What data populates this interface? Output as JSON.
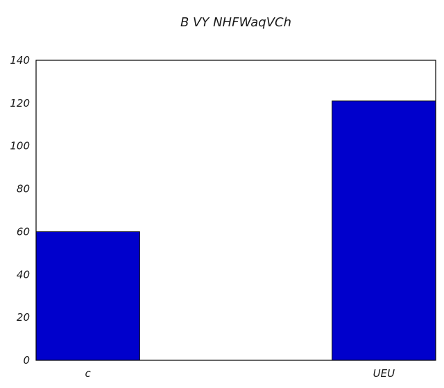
{
  "chart_data": {
    "type": "bar",
    "title": "B VY NHFWaqVCh",
    "categories": [
      "c",
      "UEU"
    ],
    "values": [
      60,
      121
    ],
    "ylim": [
      0,
      140
    ],
    "yticks": [
      0,
      20,
      40,
      60,
      80,
      100,
      120,
      140
    ],
    "xlabel": "",
    "ylabel": "",
    "grid": false,
    "bar_color": "#0000cc",
    "bar_edge_color": "#000000"
  }
}
